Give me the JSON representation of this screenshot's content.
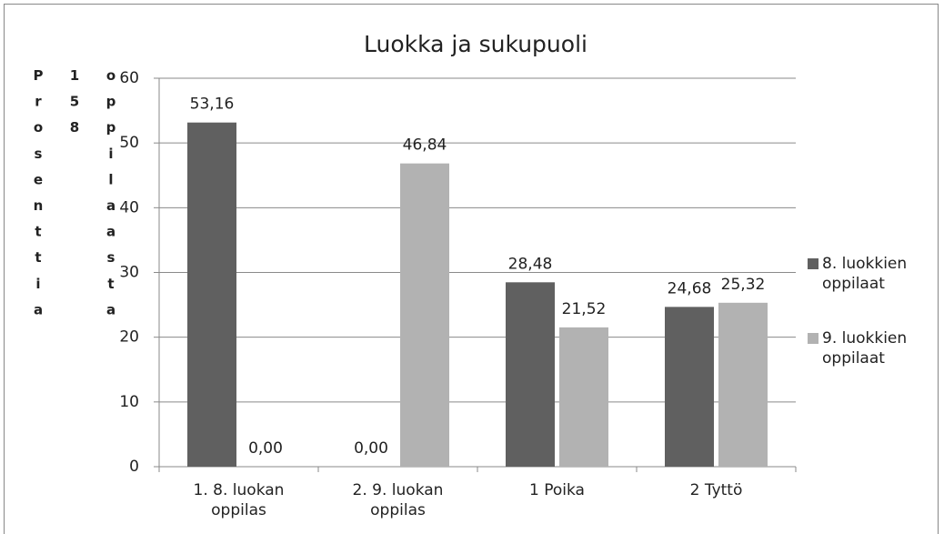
{
  "chart_data": {
    "type": "bar",
    "title": "Luokka ja sukupuoli",
    "y_label": "Prosenttia 158 oppilaasta",
    "categories": [
      "1. 8. luokan oppilas",
      "2. 9. luokan oppilas",
      "1 Poika",
      "2 Tyttö"
    ],
    "series": [
      {
        "name": "8. luokkien oppilaat",
        "color": "#606060",
        "values": [
          53.16,
          0,
          28.48,
          24.68
        ],
        "value_labels": [
          "53,16",
          "0,00",
          "28,48",
          "24,68"
        ]
      },
      {
        "name": "9. luokkien oppilaat",
        "color": "#b2b2b2",
        "values": [
          0,
          46.84,
          21.52,
          25.32
        ],
        "value_labels": [
          "0,00",
          "46,84",
          "21,52",
          "25,32"
        ]
      }
    ],
    "ylim": [
      0,
      60
    ],
    "yticks": [
      0,
      10,
      20,
      30,
      40,
      50,
      60
    ],
    "grid": true,
    "legend": "right"
  }
}
